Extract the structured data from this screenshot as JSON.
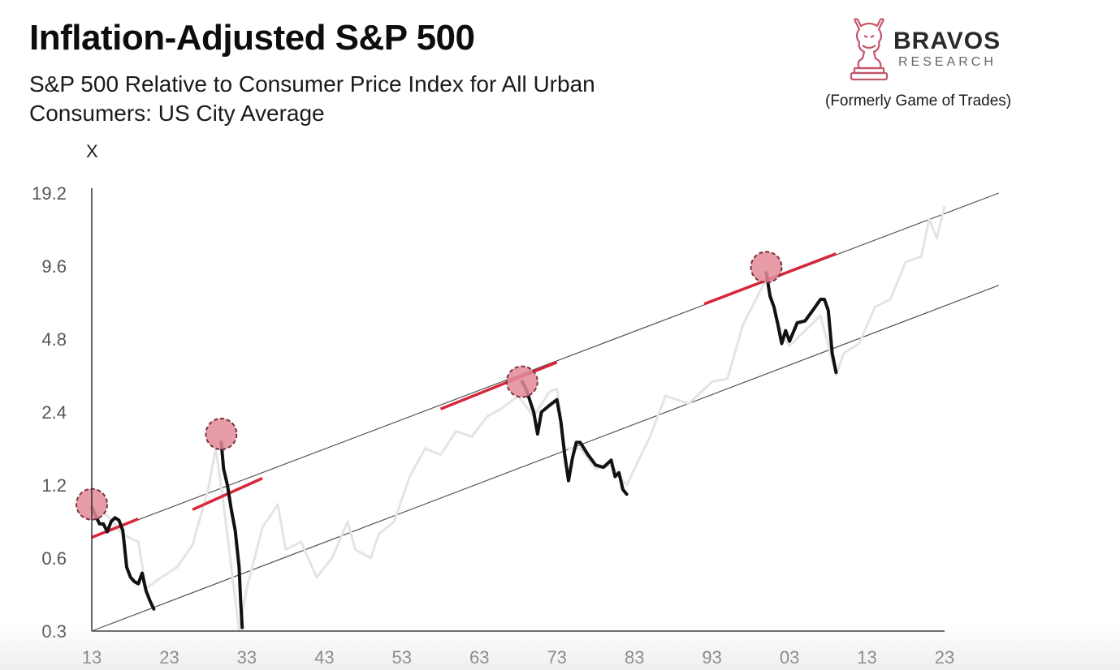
{
  "header": {
    "title": "Inflation-Adjusted S&P 500",
    "subtitle": "S&P 500 Relative to Consumer Price Index for All Urban Consumers: US City Average"
  },
  "brand": {
    "name": "BRAVOS",
    "tagline": "RESEARCH",
    "formerly": "(Formerly Game of Trades)",
    "color": "#c2566b"
  },
  "colors": {
    "history_line": "#e4e4e4",
    "highlight_line": "#111111",
    "channel_line": "#555555",
    "resistance": "#d9263a",
    "peak_marker": "#e28a98",
    "peak_marker_border": "#7a3340"
  },
  "chart_data": {
    "type": "line",
    "title": "Inflation-Adjusted S&P 500",
    "ylabel": "X",
    "xlabel": "",
    "y_scale": "log2",
    "ylim": [
      0.3,
      19.2
    ],
    "y_ticks": [
      0.3,
      0.6,
      1.2,
      2.4,
      4.8,
      9.6,
      19.2
    ],
    "y_tick_labels": [
      "0.3",
      "0.6",
      "1.2",
      "2.4",
      "4.8",
      "9.6",
      "19.2"
    ],
    "xlim": [
      1913,
      2023
    ],
    "x_ticks": [
      1913,
      1923,
      1933,
      1943,
      1953,
      1963,
      1973,
      1983,
      1993,
      2003,
      2013,
      2023
    ],
    "x_tick_labels": [
      "13",
      "23",
      "33",
      "43",
      "53",
      "63",
      "73",
      "83",
      "93",
      "03",
      "13",
      "23"
    ],
    "grid": false,
    "series": [
      {
        "role": "history",
        "x": [
          1913,
          1915,
          1917,
          1919,
          1920,
          1922,
          1924,
          1926,
          1928,
          1929,
          1930,
          1932,
          1933,
          1935,
          1937,
          1938,
          1940,
          1942,
          1944,
          1946,
          1947,
          1949,
          1950,
          1952,
          1954,
          1956,
          1958,
          1960,
          1962,
          1964,
          1966,
          1968,
          1970,
          1972,
          1973,
          1974,
          1976,
          1978,
          1980,
          1982,
          1985,
          1987,
          1990,
          1993,
          1995,
          1997,
          2000,
          2002,
          2003,
          2005,
          2007,
          2009,
          2010,
          2012,
          2014,
          2016,
          2018,
          2020,
          2021,
          2022,
          2023
        ],
        "values": [
          0.95,
          0.9,
          0.75,
          0.7,
          0.45,
          0.5,
          0.55,
          0.68,
          1.15,
          1.7,
          1.0,
          0.3,
          0.45,
          0.8,
          1.0,
          0.65,
          0.7,
          0.5,
          0.6,
          0.85,
          0.65,
          0.6,
          0.75,
          0.85,
          1.3,
          1.7,
          1.6,
          2.0,
          1.9,
          2.3,
          2.5,
          2.8,
          2.3,
          2.9,
          3.0,
          1.7,
          1.7,
          1.4,
          1.45,
          1.2,
          1.9,
          2.8,
          2.6,
          3.2,
          3.3,
          5.5,
          8.5,
          5.0,
          4.5,
          5.2,
          6.0,
          3.4,
          4.2,
          4.6,
          6.5,
          7.0,
          10.0,
          10.5,
          15.0,
          12.5,
          17.0
        ]
      },
      {
        "name": "",
        "role": "highlight",
        "x": [
          1913,
          1914,
          1914.5,
          1915,
          1915.5,
          1916,
          1916.5,
          1917,
          1917.5,
          1918,
          1918.5,
          1919,
          1919.5,
          1920,
          1920.5,
          1921
        ],
        "values": [
          0.97,
          0.83,
          0.83,
          0.77,
          0.85,
          0.88,
          0.86,
          0.78,
          0.55,
          0.5,
          0.48,
          0.47,
          0.52,
          0.44,
          0.4,
          0.37
        ]
      },
      {
        "name": "",
        "role": "highlight",
        "x": [
          1929.7,
          1930,
          1930.5,
          1931,
          1931.5,
          1932,
          1932.2,
          1932.4
        ],
        "values": [
          1.8,
          1.4,
          1.2,
          0.95,
          0.78,
          0.55,
          0.4,
          0.31
        ]
      },
      {
        "name": "",
        "role": "highlight",
        "x": [
          1968.5,
          1969,
          1970,
          1970.5,
          1971,
          1972,
          1973,
          1973.5,
          1974,
          1974.5,
          1975,
          1975.5,
          1976,
          1977,
          1978,
          1979,
          1980,
          1980.5,
          1981,
          1981.5,
          1982
        ],
        "values": [
          3.2,
          3.0,
          2.4,
          1.95,
          2.4,
          2.55,
          2.7,
          2.2,
          1.6,
          1.25,
          1.55,
          1.8,
          1.8,
          1.6,
          1.45,
          1.42,
          1.52,
          1.3,
          1.35,
          1.15,
          1.1
        ]
      },
      {
        "name": "",
        "role": "highlight",
        "x": [
          2000,
          2000.5,
          2001,
          2001.5,
          2002,
          2002.5,
          2003,
          2004,
          2005,
          2006,
          2007,
          2007.5,
          2008,
          2008.5,
          2009
        ],
        "values": [
          9.0,
          7.2,
          6.5,
          5.5,
          4.6,
          5.2,
          4.7,
          5.6,
          5.7,
          6.3,
          7.0,
          7.0,
          6.3,
          4.2,
          3.5
        ]
      }
    ],
    "channel": {
      "upper": {
        "x": [
          1913,
          2030
        ],
        "values": [
          0.73,
          19.2
        ]
      },
      "lower": {
        "x": [
          1913,
          2030
        ],
        "values": [
          0.3,
          8.0
        ]
      }
    },
    "resistance_segments": [
      {
        "x": [
          1913,
          1919
        ],
        "values": [
          0.73,
          0.87
        ]
      },
      {
        "x": [
          1926,
          1935
        ],
        "values": [
          0.95,
          1.28
        ]
      },
      {
        "x": [
          1958,
          1973
        ],
        "values": [
          2.47,
          3.85
        ]
      },
      {
        "x": [
          1992,
          2009
        ],
        "values": [
          6.7,
          10.8
        ]
      }
    ],
    "peaks": [
      {
        "x": 1913,
        "value": 1.0
      },
      {
        "x": 1929.7,
        "value": 1.95
      },
      {
        "x": 1968.5,
        "value": 3.2
      },
      {
        "x": 2000,
        "value": 9.5
      }
    ]
  }
}
